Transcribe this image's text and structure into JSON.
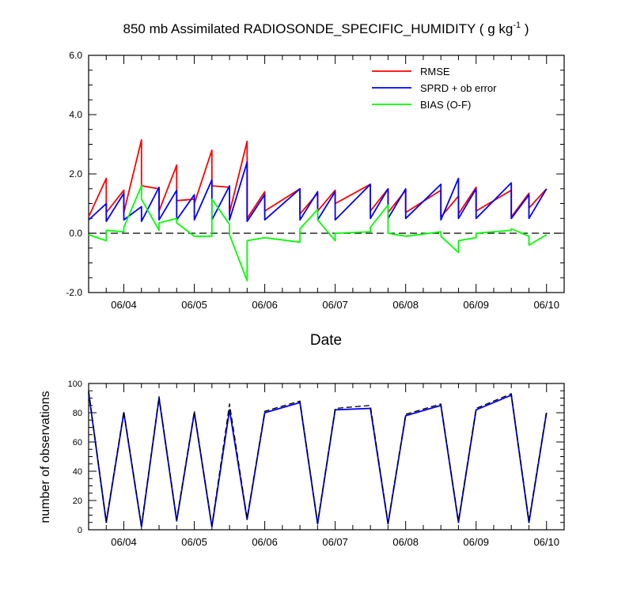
{
  "chart_data": [
    {
      "type": "line",
      "title": "850 mb Assimilated RADIOSONDE_SPECIFIC_HUMIDITY ( g kg",
      "title_sup": "-1",
      "title_end": " )",
      "xlabel": "Date",
      "ylabel": "",
      "xlim": [
        0,
        6.75
      ],
      "ylim": [
        -2.0,
        6.0
      ],
      "yticks": [
        -2.0,
        0.0,
        2.0,
        4.0,
        6.0
      ],
      "ytick_labels": [
        "-2.0",
        "0.0",
        "2.0",
        "4.0",
        "6.0"
      ],
      "xtick_labels": [
        "06/04",
        "06/05",
        "06/06",
        "06/07",
        "06/08",
        "06/09",
        "06/10"
      ],
      "zero_line": "dashed",
      "legend_position": "top-right",
      "series": [
        {
          "name": "RMSE",
          "color": "#ff0000",
          "points": [
            [
              0,
              0.55
            ],
            [
              0.25,
              1.85
            ],
            [
              0.25,
              0.7
            ],
            [
              0.5,
              1.45
            ],
            [
              0.5,
              0.7
            ],
            [
              0.75,
              3.15
            ],
            [
              0.75,
              1.6
            ],
            [
              1.0,
              1.5
            ],
            [
              1.0,
              0.75
            ],
            [
              1.25,
              2.3
            ],
            [
              1.25,
              1.1
            ],
            [
              1.5,
              1.15
            ],
            [
              1.5,
              1.0
            ],
            [
              1.75,
              2.8
            ],
            [
              1.75,
              1.6
            ],
            [
              2.0,
              1.55
            ],
            [
              2.0,
              0.7
            ],
            [
              2.25,
              3.1
            ],
            [
              2.25,
              0.5
            ],
            [
              2.5,
              1.4
            ],
            [
              2.5,
              0.75
            ],
            [
              3.0,
              1.5
            ],
            [
              3.0,
              0.65
            ],
            [
              3.25,
              1.35
            ],
            [
              3.25,
              0.75
            ],
            [
              3.5,
              1.45
            ],
            [
              3.5,
              1.0
            ],
            [
              4.0,
              1.65
            ],
            [
              4.0,
              0.75
            ],
            [
              4.25,
              1.5
            ],
            [
              4.25,
              0.7
            ],
            [
              4.5,
              1.45
            ],
            [
              4.5,
              0.7
            ],
            [
              5.0,
              1.45
            ],
            [
              5.0,
              0.55
            ],
            [
              5.25,
              1.25
            ],
            [
              5.25,
              0.65
            ],
            [
              5.5,
              1.55
            ],
            [
              5.5,
              0.75
            ],
            [
              6.0,
              1.45
            ],
            [
              6.0,
              0.55
            ],
            [
              6.25,
              1.35
            ],
            [
              6.25,
              0.85
            ],
            [
              6.5,
              1.5
            ]
          ]
        },
        {
          "name": "SPRD + ob error",
          "color": "#0000ff",
          "points": [
            [
              0,
              0.45
            ],
            [
              0.25,
              1.0
            ],
            [
              0.25,
              0.4
            ],
            [
              0.5,
              1.35
            ],
            [
              0.5,
              0.45
            ],
            [
              0.75,
              0.9
            ],
            [
              0.75,
              0.4
            ],
            [
              1.0,
              1.55
            ],
            [
              1.0,
              0.45
            ],
            [
              1.25,
              1.45
            ],
            [
              1.25,
              0.45
            ],
            [
              1.5,
              1.3
            ],
            [
              1.5,
              0.45
            ],
            [
              1.75,
              1.8
            ],
            [
              1.75,
              0.45
            ],
            [
              2.0,
              1.6
            ],
            [
              2.0,
              0.45
            ],
            [
              2.25,
              2.4
            ],
            [
              2.25,
              0.4
            ],
            [
              2.5,
              1.3
            ],
            [
              2.5,
              0.45
            ],
            [
              3.0,
              1.5
            ],
            [
              3.0,
              0.45
            ],
            [
              3.25,
              1.4
            ],
            [
              3.25,
              0.45
            ],
            [
              3.5,
              1.4
            ],
            [
              3.5,
              0.45
            ],
            [
              4.0,
              1.65
            ],
            [
              4.0,
              0.5
            ],
            [
              4.25,
              1.5
            ],
            [
              4.25,
              0.5
            ],
            [
              4.5,
              1.5
            ],
            [
              4.5,
              0.5
            ],
            [
              5.0,
              1.65
            ],
            [
              5.0,
              0.45
            ],
            [
              5.25,
              1.85
            ],
            [
              5.25,
              0.5
            ],
            [
              5.5,
              1.5
            ],
            [
              5.5,
              0.5
            ],
            [
              6.0,
              1.7
            ],
            [
              6.0,
              0.5
            ],
            [
              6.25,
              1.3
            ],
            [
              6.25,
              0.5
            ],
            [
              6.5,
              1.5
            ]
          ]
        },
        {
          "name": "BIAS (O-F)",
          "color": "#00ff00",
          "points": [
            [
              0,
              -0.05
            ],
            [
              0.25,
              -0.25
            ],
            [
              0.25,
              0.1
            ],
            [
              0.5,
              0.05
            ],
            [
              0.5,
              0.2
            ],
            [
              0.75,
              1.6
            ],
            [
              0.75,
              1.15
            ],
            [
              1.0,
              0.1
            ],
            [
              1.0,
              0.35
            ],
            [
              1.25,
              0.5
            ],
            [
              1.25,
              0.35
            ],
            [
              1.5,
              -0.1
            ],
            [
              1.5,
              -0.1
            ],
            [
              1.75,
              -0.1
            ],
            [
              1.75,
              1.15
            ],
            [
              2.0,
              0.3
            ],
            [
              2.0,
              -0.05
            ],
            [
              2.25,
              -1.6
            ],
            [
              2.25,
              -0.25
            ],
            [
              2.5,
              -0.15
            ],
            [
              2.5,
              -0.15
            ],
            [
              3.0,
              -0.3
            ],
            [
              3.0,
              0.15
            ],
            [
              3.25,
              0.8
            ],
            [
              3.25,
              0.45
            ],
            [
              3.5,
              -0.25
            ],
            [
              3.5,
              0.0
            ],
            [
              4.0,
              0.05
            ],
            [
              4.0,
              0.2
            ],
            [
              4.25,
              0.95
            ],
            [
              4.25,
              0.0
            ],
            [
              4.5,
              -0.1
            ],
            [
              4.5,
              -0.1
            ],
            [
              5.0,
              0.05
            ],
            [
              5.0,
              -0.1
            ],
            [
              5.25,
              -0.65
            ],
            [
              5.25,
              -0.25
            ],
            [
              5.5,
              -0.15
            ],
            [
              5.5,
              0.0
            ],
            [
              6.0,
              0.1
            ],
            [
              6.0,
              0.15
            ],
            [
              6.25,
              -0.1
            ],
            [
              6.25,
              -0.4
            ],
            [
              6.5,
              -0.05
            ]
          ]
        }
      ]
    },
    {
      "type": "line",
      "title": "",
      "xlabel": "",
      "ylabel": "number of observations",
      "xlim": [
        0,
        6.75
      ],
      "ylim": [
        0,
        100
      ],
      "yticks": [
        0,
        20,
        40,
        60,
        80,
        100
      ],
      "ytick_labels": [
        "0",
        "20",
        "40",
        "60",
        "80",
        "100"
      ],
      "xtick_labels": [
        "06/04",
        "06/05",
        "06/06",
        "06/07",
        "06/08",
        "06/09",
        "06/10"
      ],
      "series": [
        {
          "style": "solid",
          "color": "#0000ff",
          "points": [
            [
              0,
              94
            ],
            [
              0.25,
              5
            ],
            [
              0.5,
              80
            ],
            [
              0.75,
              2
            ],
            [
              1.0,
              90
            ],
            [
              1.25,
              6
            ],
            [
              1.5,
              80
            ],
            [
              1.75,
              2
            ],
            [
              2.0,
              82
            ],
            [
              2.25,
              7
            ],
            [
              2.5,
              80
            ],
            [
              3.0,
              87
            ],
            [
              3.25,
              4
            ],
            [
              3.5,
              82
            ],
            [
              4.0,
              83
            ],
            [
              4.25,
              4
            ],
            [
              4.5,
              78
            ],
            [
              5.0,
              85
            ],
            [
              5.25,
              5
            ],
            [
              5.5,
              82
            ],
            [
              6.0,
              92
            ],
            [
              6.25,
              5
            ],
            [
              6.5,
              80
            ]
          ]
        },
        {
          "style": "dashed",
          "color": "#000000",
          "points": [
            [
              0,
              95
            ],
            [
              0.25,
              6
            ],
            [
              0.5,
              81
            ],
            [
              0.75,
              3
            ],
            [
              1.0,
              91
            ],
            [
              1.25,
              7
            ],
            [
              1.5,
              81
            ],
            [
              1.75,
              3
            ],
            [
              2.0,
              86
            ],
            [
              2.25,
              8
            ],
            [
              2.5,
              81
            ],
            [
              3.0,
              88
            ],
            [
              3.25,
              5
            ],
            [
              3.5,
              83
            ],
            [
              4.0,
              85
            ],
            [
              4.25,
              5
            ],
            [
              4.5,
              79
            ],
            [
              5.0,
              86
            ],
            [
              5.25,
              6
            ],
            [
              5.5,
              83
            ],
            [
              6.0,
              93
            ],
            [
              6.25,
              6
            ],
            [
              6.5,
              81
            ]
          ]
        }
      ]
    }
  ]
}
